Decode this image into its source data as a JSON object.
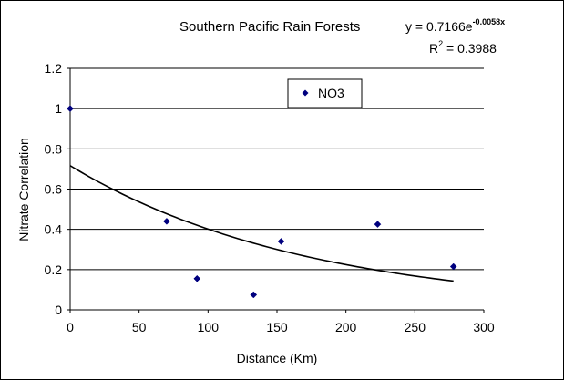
{
  "chart_data": {
    "type": "scatter",
    "title": "Southern Pacific Rain Forests",
    "xlabel": "Distance (Km)",
    "ylabel": "Nitrate Correlation",
    "xlim": [
      0,
      300
    ],
    "ylim": [
      0,
      1.2
    ],
    "x_ticks": [
      "0",
      "50",
      "100",
      "150",
      "200",
      "250",
      "300"
    ],
    "y_ticks": [
      "0",
      "0.2",
      "0.4",
      "0.6",
      "0.8",
      "1",
      "1.2"
    ],
    "grid": "horizontal",
    "legend_position": "top-center",
    "series": [
      {
        "name": "NO3",
        "color": "#00007f",
        "marker": "diamond",
        "points": [
          {
            "x": 0,
            "y": 1.0
          },
          {
            "x": 70,
            "y": 0.44
          },
          {
            "x": 92,
            "y": 0.155
          },
          {
            "x": 133,
            "y": 0.075
          },
          {
            "x": 153,
            "y": 0.34
          },
          {
            "x": 223,
            "y": 0.425
          },
          {
            "x": 278,
            "y": 0.215
          }
        ]
      }
    ],
    "trendline": {
      "type": "exponential",
      "a": 0.7166,
      "b": -0.0058,
      "x_range": [
        0,
        278
      ],
      "color": "#000000"
    },
    "annotations": {
      "equation_prefix": "y = 0.7166e",
      "equation_exponent": "-0.0058x",
      "r2_prefix": "R",
      "r2_exponent": "2",
      "r2_value": " = 0.3988"
    }
  }
}
